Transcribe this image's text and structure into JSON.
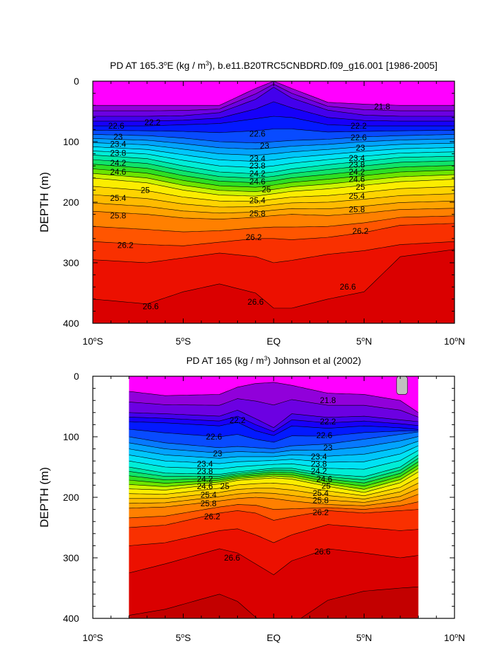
{
  "chart_data": [
    {
      "type": "heatmap",
      "title_parts": [
        "PD AT 165.3",
        "o",
        "E (kg / m",
        "3",
        "), b.e11.B20TRC5CNBDRD.f09_g16.001 [1986-2005]"
      ],
      "xlabel": "",
      "ylabel": "DEPTH (m)",
      "xlim": [
        -10,
        10
      ],
      "ylim": [
        400,
        0
      ],
      "x_ticks": [
        {
          "value": -10,
          "parts": [
            "10",
            "o",
            "S"
          ]
        },
        {
          "value": -5,
          "parts": [
            "5",
            "o",
            "S"
          ]
        },
        {
          "value": 0,
          "parts": [
            "EQ",
            "",
            ""
          ]
        },
        {
          "value": 5,
          "parts": [
            "5",
            "o",
            "N"
          ]
        },
        {
          "value": 10,
          "parts": [
            "10",
            "o",
            "N"
          ]
        }
      ],
      "y_ticks": [
        0,
        100,
        200,
        300,
        400
      ],
      "contour_interval": 0.2,
      "shallow_value": 21.0,
      "isopycnals": [
        {
          "level": 21.8,
          "depth_km": [
            -10,
            -7,
            -5,
            -3,
            -1,
            0,
            1,
            3,
            5,
            7,
            10
          ],
          "depth_m": [
            40,
            40,
            40,
            40,
            12,
            0,
            12,
            35,
            38,
            40,
            40
          ]
        },
        {
          "level": 22.2,
          "depth_km": [
            -10,
            -7,
            -5,
            -3,
            -1,
            0,
            1,
            3,
            5,
            7,
            10
          ],
          "depth_m": [
            58,
            58,
            57,
            52,
            30,
            10,
            28,
            48,
            56,
            58,
            58
          ]
        },
        {
          "level": 22.6,
          "depth_km": [
            -10,
            -7,
            -5,
            -3,
            -1,
            0,
            1,
            3,
            5,
            7,
            10
          ],
          "depth_m": [
            74,
            74,
            72,
            70,
            62,
            58,
            60,
            72,
            74,
            74,
            74
          ]
        },
        {
          "level": 23.0,
          "depth_km": [
            -10,
            -7,
            -5,
            -3,
            -1,
            0,
            1,
            3,
            5,
            7,
            10
          ],
          "depth_m": [
            88,
            90,
            94,
            100,
            102,
            100,
            98,
            96,
            92,
            90,
            88
          ]
        },
        {
          "level": 24.0,
          "depth_km": [
            -10,
            -7,
            -5,
            -3,
            -1,
            0,
            1,
            3,
            5,
            7,
            10
          ],
          "depth_m": [
            122,
            128,
            140,
            150,
            153,
            150,
            145,
            138,
            132,
            126,
            124
          ]
        },
        {
          "level": 25.0,
          "depth_km": [
            -10,
            -7,
            -5,
            -3,
            -1,
            0,
            1,
            3,
            5,
            7,
            10
          ],
          "depth_m": [
            160,
            168,
            180,
            188,
            190,
            186,
            182,
            178,
            172,
            166,
            162
          ]
        },
        {
          "level": 25.8,
          "depth_km": [
            -10,
            -7,
            -5,
            -3,
            -1,
            0,
            1,
            3,
            5,
            7,
            10
          ],
          "depth_m": [
            215,
            220,
            226,
            228,
            225,
            222,
            220,
            222,
            218,
            212,
            210
          ]
        },
        {
          "level": 26.2,
          "depth_km": [
            -10,
            -7,
            -5,
            -3,
            -1,
            0,
            1,
            3,
            5,
            7,
            10
          ],
          "depth_m": [
            265,
            270,
            272,
            266,
            260,
            260,
            262,
            258,
            250,
            238,
            235
          ]
        },
        {
          "level": 26.4,
          "depth_km": [
            -10,
            -7,
            -5,
            -3,
            -1,
            0,
            1,
            3,
            5,
            7,
            10
          ],
          "depth_m": [
            295,
            300,
            292,
            284,
            290,
            300,
            296,
            286,
            280,
            270,
            265
          ]
        },
        {
          "level": 26.6,
          "depth_km": [
            -10,
            -7,
            -5,
            -3,
            -1,
            0,
            1,
            3,
            5,
            7,
            10
          ],
          "depth_m": [
            360,
            368,
            348,
            335,
            350,
            375,
            375,
            360,
            348,
            290,
            278
          ]
        }
      ],
      "labels": [
        {
          "text": "21.8",
          "x": 6.0,
          "y": 42
        },
        {
          "text": "22.2",
          "x": -6.7,
          "y": 68
        },
        {
          "text": "22.2",
          "x": 4.7,
          "y": 74
        },
        {
          "text": "22.6",
          "x": -8.7,
          "y": 74
        },
        {
          "text": "22.6",
          "x": -0.9,
          "y": 87
        },
        {
          "text": "22.6",
          "x": 4.7,
          "y": 93
        },
        {
          "text": "23",
          "x": -8.6,
          "y": 92
        },
        {
          "text": "23",
          "x": -0.5,
          "y": 107
        },
        {
          "text": "23",
          "x": 4.8,
          "y": 110
        },
        {
          "text": "23.4",
          "x": -8.6,
          "y": 104
        },
        {
          "text": "23.4",
          "x": -0.9,
          "y": 128
        },
        {
          "text": "23.4",
          "x": 4.6,
          "y": 127
        },
        {
          "text": "23.8",
          "x": -8.6,
          "y": 119
        },
        {
          "text": "23.8",
          "x": -0.9,
          "y": 140
        },
        {
          "text": "23.8",
          "x": 4.6,
          "y": 138
        },
        {
          "text": "24.2",
          "x": -8.6,
          "y": 135
        },
        {
          "text": "24.2",
          "x": -0.9,
          "y": 153
        },
        {
          "text": "24.2",
          "x": 4.6,
          "y": 150
        },
        {
          "text": "24.6",
          "x": -8.6,
          "y": 150
        },
        {
          "text": "24.6",
          "x": -0.9,
          "y": 166
        },
        {
          "text": "24.6",
          "x": 4.6,
          "y": 162
        },
        {
          "text": "25",
          "x": -7.1,
          "y": 180
        },
        {
          "text": "25",
          "x": -0.4,
          "y": 179
        },
        {
          "text": "25",
          "x": 4.8,
          "y": 175
        },
        {
          "text": "25.4",
          "x": -8.6,
          "y": 193
        },
        {
          "text": "25.4",
          "x": -0.9,
          "y": 197
        },
        {
          "text": "25.4",
          "x": 4.6,
          "y": 190
        },
        {
          "text": "25.8",
          "x": -8.6,
          "y": 222
        },
        {
          "text": "25.8",
          "x": -0.9,
          "y": 219
        },
        {
          "text": "25.8",
          "x": 4.6,
          "y": 212
        },
        {
          "text": "26.2",
          "x": -8.2,
          "y": 271
        },
        {
          "text": "26.2",
          "x": -1.1,
          "y": 258
        },
        {
          "text": "26.2",
          "x": 4.8,
          "y": 248
        },
        {
          "text": "26.6",
          "x": -6.8,
          "y": 372
        },
        {
          "text": "26.6",
          "x": -1.0,
          "y": 365
        },
        {
          "text": "26.6",
          "x": 4.1,
          "y": 340
        }
      ]
    },
    {
      "type": "heatmap",
      "title_parts": [
        "PD AT 165 (kg / m",
        "3",
        ") Johnson et al (2002)"
      ],
      "xlabel": "",
      "ylabel": "DEPTH (m)",
      "xlim": [
        -10,
        10
      ],
      "ylim": [
        400,
        0
      ],
      "data_xlim": [
        -8,
        8
      ],
      "x_ticks": [
        {
          "value": -10,
          "parts": [
            "10",
            "o",
            "S"
          ]
        },
        {
          "value": -5,
          "parts": [
            "5",
            "o",
            "S"
          ]
        },
        {
          "value": 0,
          "parts": [
            "EQ",
            "",
            ""
          ]
        },
        {
          "value": 5,
          "parts": [
            "5",
            "o",
            "N"
          ]
        },
        {
          "value": 10,
          "parts": [
            "10",
            "o",
            "N"
          ]
        }
      ],
      "y_ticks": [
        0,
        100,
        200,
        300,
        400
      ],
      "contour_interval": 0.2,
      "shallow_value": 21.0,
      "missing_patch": {
        "x": [
          6.8,
          7.4
        ],
        "y": [
          0,
          30
        ]
      },
      "isopycnals": [
        {
          "level": 21.8,
          "depth_km": [
            -8,
            -6,
            -3,
            -2,
            -1,
            0,
            1,
            3,
            5,
            7,
            8
          ],
          "depth_m": [
            25,
            32,
            30,
            18,
            12,
            10,
            15,
            28,
            30,
            40,
            60
          ]
        },
        {
          "level": 22.2,
          "depth_km": [
            -8,
            -6,
            -3,
            -2,
            -1,
            0,
            1,
            3,
            5,
            7,
            8
          ],
          "depth_m": [
            60,
            62,
            66,
            56,
            70,
            85,
            62,
            68,
            66,
            72,
            75
          ]
        },
        {
          "level": 22.6,
          "depth_km": [
            -8,
            -6,
            -3,
            -2,
            -1,
            0,
            1,
            3,
            5,
            7,
            8
          ],
          "depth_m": [
            75,
            77,
            82,
            76,
            90,
            98,
            82,
            86,
            82,
            85,
            88
          ]
        },
        {
          "level": 23.0,
          "depth_km": [
            -8,
            -6,
            -3,
            -2,
            -1,
            0,
            1,
            3,
            5,
            7,
            8
          ],
          "depth_m": [
            100,
            110,
            118,
            116,
            118,
            120,
            115,
            112,
            104,
            96,
            92
          ]
        },
        {
          "level": 24.0,
          "depth_km": [
            -8,
            -6,
            -3,
            -2,
            -1,
            0,
            1,
            3,
            5,
            7,
            8
          ],
          "depth_m": [
            150,
            160,
            162,
            158,
            155,
            152,
            152,
            162,
            166,
            150,
            130
          ]
        },
        {
          "level": 25.0,
          "depth_km": [
            -8,
            -6,
            -3,
            -2,
            -1,
            0,
            1,
            3,
            5,
            7,
            8
          ],
          "depth_m": [
            186,
            188,
            178,
            172,
            170,
            168,
            170,
            182,
            192,
            176,
            158
          ]
        },
        {
          "level": 25.8,
          "depth_km": [
            -8,
            -6,
            -3,
            -2,
            -1,
            0,
            1,
            3,
            5,
            7,
            8
          ],
          "depth_m": [
            218,
            216,
            206,
            202,
            200,
            202,
            206,
            212,
            214,
            206,
            195
          ]
        },
        {
          "level": 26.2,
          "depth_km": [
            -8,
            -6,
            -3,
            -2,
            -1,
            0,
            1,
            3,
            5,
            7,
            8
          ],
          "depth_m": [
            250,
            246,
            226,
            222,
            226,
            238,
            232,
            222,
            226,
            222,
            220
          ]
        },
        {
          "level": 26.4,
          "depth_km": [
            -8,
            -6,
            -3,
            -2,
            -1,
            0,
            1,
            3,
            5,
            7,
            8
          ],
          "depth_m": [
            280,
            275,
            255,
            252,
            262,
            275,
            262,
            245,
            250,
            255,
            253
          ]
        },
        {
          "level": 26.6,
          "depth_km": [
            -8,
            -6,
            -3,
            -2,
            -1,
            0,
            1,
            3,
            5,
            7,
            8
          ],
          "depth_m": [
            325,
            310,
            285,
            292,
            310,
            328,
            305,
            285,
            292,
            300,
            296
          ]
        },
        {
          "level": 26.8,
          "depth_km": [
            -8,
            -6,
            -3,
            -2,
            -1,
            0,
            1,
            3,
            5,
            7,
            8
          ],
          "depth_m": [
            395,
            385,
            360,
            372,
            398,
            420,
            410,
            370,
            355,
            350,
            348
          ]
        }
      ],
      "labels": [
        {
          "text": "21.8",
          "x": 3.0,
          "y": 40
        },
        {
          "text": "22.2",
          "x": -2.0,
          "y": 73
        },
        {
          "text": "22.2",
          "x": 3.0,
          "y": 75
        },
        {
          "text": "22.6",
          "x": -3.3,
          "y": 100
        },
        {
          "text": "22.6",
          "x": 2.8,
          "y": 98
        },
        {
          "text": "23",
          "x": -3.1,
          "y": 128
        },
        {
          "text": "23",
          "x": 3.0,
          "y": 118
        },
        {
          "text": "23.4",
          "x": -3.8,
          "y": 145
        },
        {
          "text": "23.4",
          "x": 2.5,
          "y": 133
        },
        {
          "text": "23.8",
          "x": -3.8,
          "y": 157
        },
        {
          "text": "23.8",
          "x": 2.5,
          "y": 145
        },
        {
          "text": "24.2",
          "x": -3.8,
          "y": 170
        },
        {
          "text": "24.2",
          "x": 2.5,
          "y": 157
        },
        {
          "text": "24.6",
          "x": -3.8,
          "y": 182
        },
        {
          "text": "24.6",
          "x": 2.8,
          "y": 170
        },
        {
          "text": "25",
          "x": -2.7,
          "y": 182
        },
        {
          "text": "25",
          "x": 2.9,
          "y": 181
        },
        {
          "text": "25.4",
          "x": -3.6,
          "y": 196
        },
        {
          "text": "25.4",
          "x": 2.6,
          "y": 193
        },
        {
          "text": "25.8",
          "x": -3.6,
          "y": 210
        },
        {
          "text": "25.8",
          "x": 2.6,
          "y": 205
        },
        {
          "text": "26.2",
          "x": -3.4,
          "y": 232
        },
        {
          "text": "26.2",
          "x": 2.6,
          "y": 225
        },
        {
          "text": "26.6",
          "x": -2.3,
          "y": 300
        },
        {
          "text": "26.6",
          "x": 2.7,
          "y": 290
        }
      ]
    }
  ],
  "colormap": [
    {
      "v": 21.0,
      "c": "#ff00ff"
    },
    {
      "v": 21.4,
      "c": "#dc00e8"
    },
    {
      "v": 21.8,
      "c": "#a400d6"
    },
    {
      "v": 22.2,
      "c": "#5a00e6"
    },
    {
      "v": 22.6,
      "c": "#0000ff"
    },
    {
      "v": 23.0,
      "c": "#0a64ff"
    },
    {
      "v": 23.4,
      "c": "#00b8ff"
    },
    {
      "v": 23.8,
      "c": "#00f0f0"
    },
    {
      "v": 24.2,
      "c": "#00e68c"
    },
    {
      "v": 24.6,
      "c": "#3cdc00"
    },
    {
      "v": 25.0,
      "c": "#fafa00"
    },
    {
      "v": 25.4,
      "c": "#ffc800"
    },
    {
      "v": 25.8,
      "c": "#ff9600"
    },
    {
      "v": 26.2,
      "c": "#ff4000"
    },
    {
      "v": 26.6,
      "c": "#e60000"
    },
    {
      "v": 27.0,
      "c": "#b80000"
    }
  ],
  "missing_color": "#c0c0c0"
}
